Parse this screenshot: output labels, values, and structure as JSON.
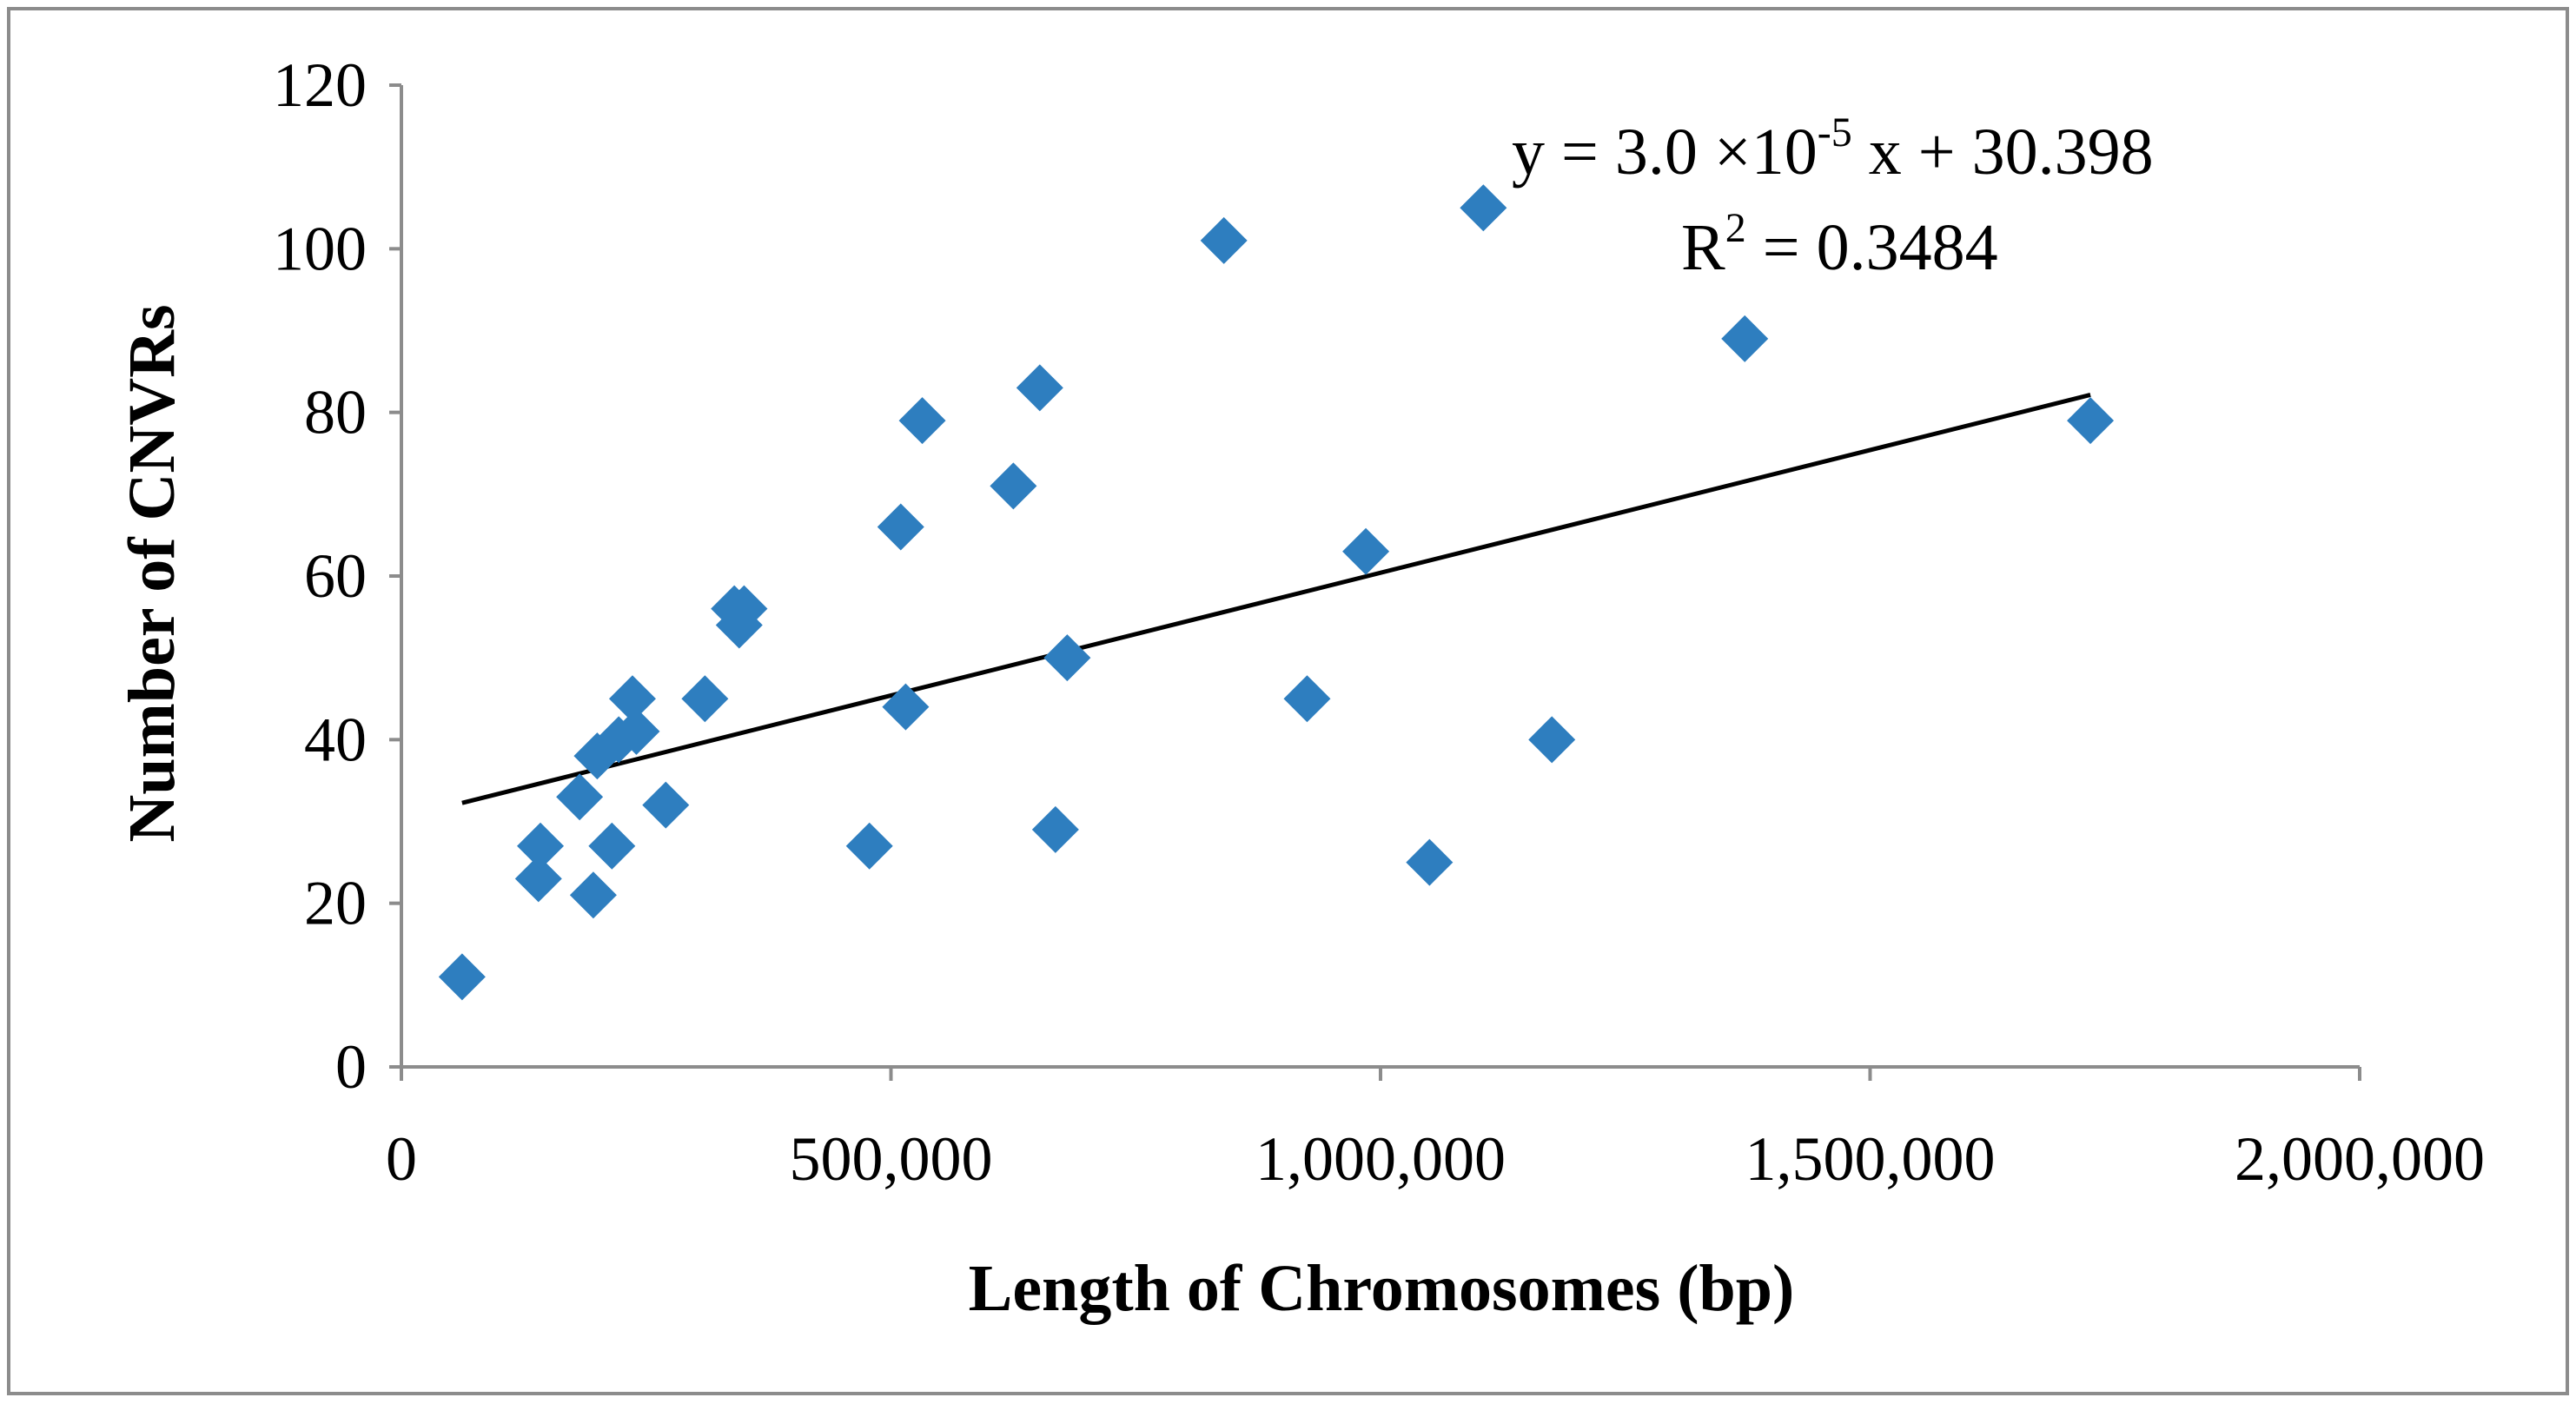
{
  "chart_data": {
    "type": "scatter",
    "xlabel": "Length of Chromosomes (bp)",
    "ylabel": "Number of CNVRs",
    "xlim": [
      0,
      2000000
    ],
    "ylim": [
      0,
      120
    ],
    "x_ticks": [
      0,
      500000,
      1000000,
      1500000,
      2000000
    ],
    "x_tick_labels": [
      "0",
      "500,000",
      "1,000,000",
      "1,500,000",
      "2,000,000"
    ],
    "y_ticks": [
      0,
      20,
      40,
      60,
      80,
      100,
      120
    ],
    "y_tick_labels": [
      "0",
      "20",
      "40",
      "60",
      "80",
      "100",
      "120"
    ],
    "marker_color": "#2E7EBF",
    "line_color": "#000000",
    "points": [
      {
        "x": 62000,
        "y": 11
      },
      {
        "x": 140000,
        "y": 23
      },
      {
        "x": 142000,
        "y": 27
      },
      {
        "x": 182000,
        "y": 33
      },
      {
        "x": 196000,
        "y": 21
      },
      {
        "x": 200000,
        "y": 38
      },
      {
        "x": 215000,
        "y": 27
      },
      {
        "x": 222000,
        "y": 40
      },
      {
        "x": 236000,
        "y": 45
      },
      {
        "x": 240000,
        "y": 41
      },
      {
        "x": 270000,
        "y": 32
      },
      {
        "x": 310000,
        "y": 45
      },
      {
        "x": 340000,
        "y": 56
      },
      {
        "x": 345000,
        "y": 54
      },
      {
        "x": 350000,
        "y": 56
      },
      {
        "x": 478000,
        "y": 27
      },
      {
        "x": 510000,
        "y": 66
      },
      {
        "x": 515000,
        "y": 44
      },
      {
        "x": 532000,
        "y": 79
      },
      {
        "x": 625000,
        "y": 71
      },
      {
        "x": 652000,
        "y": 83
      },
      {
        "x": 668000,
        "y": 29
      },
      {
        "x": 680000,
        "y": 50
      },
      {
        "x": 840000,
        "y": 101
      },
      {
        "x": 925000,
        "y": 45
      },
      {
        "x": 985000,
        "y": 63
      },
      {
        "x": 1050000,
        "y": 25
      },
      {
        "x": 1105000,
        "y": 105
      },
      {
        "x": 1175000,
        "y": 40
      },
      {
        "x": 1372000,
        "y": 89
      },
      {
        "x": 1725000,
        "y": 79
      }
    ],
    "trendline": {
      "slope": 3e-05,
      "intercept": 30.398,
      "x_range": [
        62000,
        1725000
      ],
      "equation_prefix": "y = 3.0 ×10",
      "equation_exponent": "-5",
      "equation_suffix": " x + 30.398",
      "r2_prefix": "R",
      "r2_exponent": "2",
      "r2_suffix": " = 0.3484"
    }
  }
}
